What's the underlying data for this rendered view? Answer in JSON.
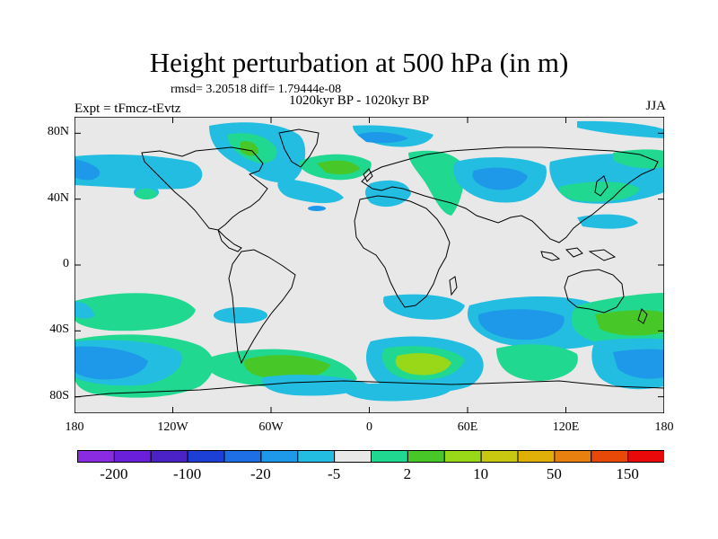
{
  "title": "Height perturbation at 500 hPa (in m)",
  "stats": "rmsd= 3.20518 diff= 1.79444e-08",
  "period": "1020kyr BP - 1020kyr BP",
  "experiment": "Expt = tFmcz-tEvtz",
  "season": "JJA",
  "axes": {
    "lat_ticks": [
      {
        "label": "80N",
        "value": 80
      },
      {
        "label": "40N",
        "value": 40
      },
      {
        "label": "0",
        "value": 0
      },
      {
        "label": "40S",
        "value": -40
      },
      {
        "label": "80S",
        "value": -80
      }
    ],
    "lon_ticks": [
      {
        "label": "180",
        "value": -180
      },
      {
        "label": "120W",
        "value": -120
      },
      {
        "label": "60W",
        "value": -60
      },
      {
        "label": "0",
        "value": 0
      },
      {
        "label": "60E",
        "value": 60
      },
      {
        "label": "120E",
        "value": 120
      },
      {
        "label": "180",
        "value": 180
      }
    ],
    "lon_range": [
      -180,
      180
    ],
    "lat_range": [
      -90,
      90
    ]
  },
  "colorbar": {
    "colors": [
      "#8a2be2",
      "#6a20d8",
      "#4b22c8",
      "#1c3fd6",
      "#1e6ee6",
      "#1e98e8",
      "#22bde0",
      "#e8e8e8",
      "#20d890",
      "#48c828",
      "#98d818",
      "#c8c810",
      "#e0b008",
      "#e88010",
      "#e84808",
      "#e80a0a"
    ],
    "labels": [
      "-200",
      "-100",
      "-20",
      "-5",
      "2",
      "10",
      "50",
      "150"
    ]
  },
  "palette": {
    "land_background": "#e8e8e8",
    "coast": "#000000"
  }
}
